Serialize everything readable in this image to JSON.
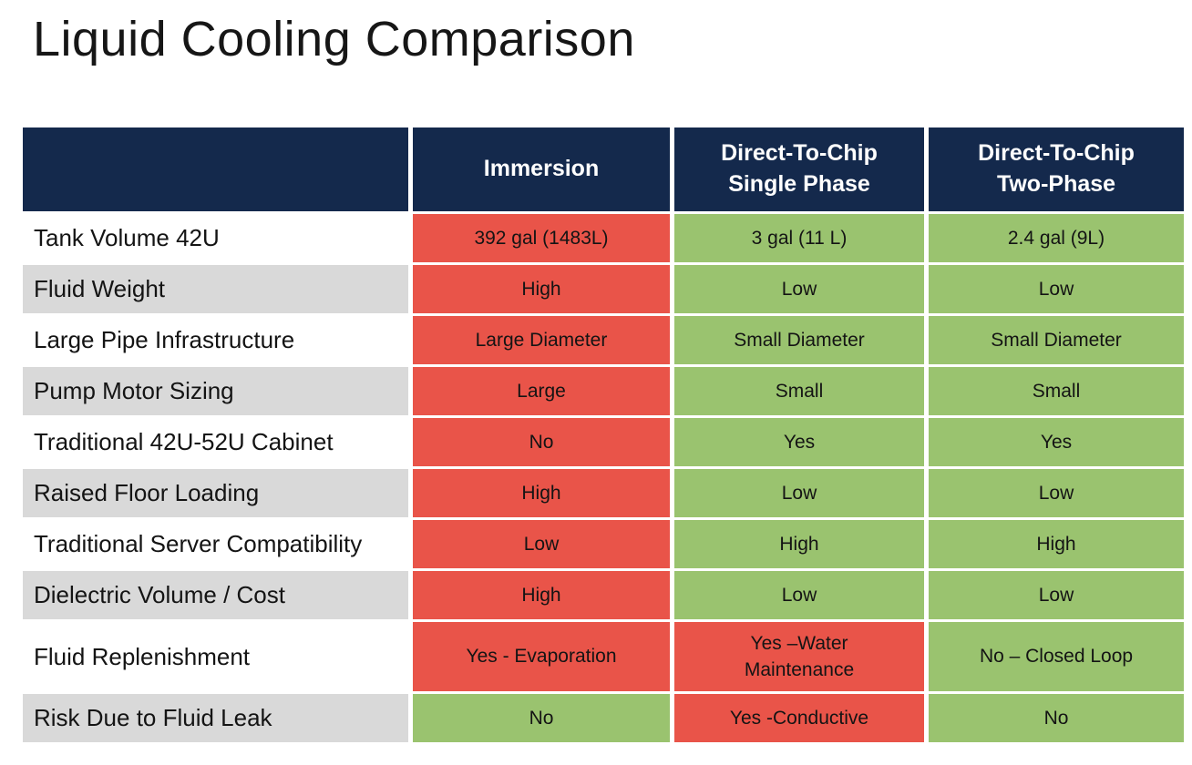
{
  "title": "Liquid Cooling Comparison",
  "colors": {
    "header_bg": "#14294C",
    "negative": "#E95449",
    "positive": "#9AC36F",
    "label_alt": "#D9D9D9",
    "label_default": "#FFFFFF",
    "header_text": "#FFFFFF",
    "body_text": "#141414"
  },
  "table": {
    "columns": [
      {
        "line1": "Immersion",
        "line2": ""
      },
      {
        "line1": "Direct-To-Chip",
        "line2": "Single Phase"
      },
      {
        "line1": "Direct-To-Chip",
        "line2": "Two-Phase"
      }
    ],
    "rows": [
      {
        "label": "Tank Volume 42U",
        "cells": [
          {
            "text": "392 gal (1483L)",
            "status": "negative"
          },
          {
            "text": "3 gal (11 L)",
            "status": "positive"
          },
          {
            "text": "2.4 gal (9L)",
            "status": "positive"
          }
        ]
      },
      {
        "label": "Fluid Weight",
        "cells": [
          {
            "text": "High",
            "status": "negative"
          },
          {
            "text": "Low",
            "status": "positive"
          },
          {
            "text": "Low",
            "status": "positive"
          }
        ]
      },
      {
        "label": "Large Pipe Infrastructure",
        "cells": [
          {
            "text": "Large Diameter",
            "status": "negative"
          },
          {
            "text": "Small Diameter",
            "status": "positive"
          },
          {
            "text": "Small Diameter",
            "status": "positive"
          }
        ]
      },
      {
        "label": "Pump Motor Sizing",
        "cells": [
          {
            "text": "Large",
            "status": "negative"
          },
          {
            "text": "Small",
            "status": "positive"
          },
          {
            "text": "Small",
            "status": "positive"
          }
        ]
      },
      {
        "label": "Traditional 42U-52U Cabinet",
        "cells": [
          {
            "text": "No",
            "status": "negative"
          },
          {
            "text": "Yes",
            "status": "positive"
          },
          {
            "text": "Yes",
            "status": "positive"
          }
        ]
      },
      {
        "label": "Raised Floor Loading",
        "cells": [
          {
            "text": "High",
            "status": "negative"
          },
          {
            "text": "Low",
            "status": "positive"
          },
          {
            "text": "Low",
            "status": "positive"
          }
        ]
      },
      {
        "label": "Traditional Server Compatibility",
        "cells": [
          {
            "text": "Low",
            "status": "negative"
          },
          {
            "text": "High",
            "status": "positive"
          },
          {
            "text": "High",
            "status": "positive"
          }
        ]
      },
      {
        "label": "Dielectric Volume / Cost",
        "cells": [
          {
            "text": "High",
            "status": "negative"
          },
          {
            "text": "Low",
            "status": "positive"
          },
          {
            "text": "Low",
            "status": "positive"
          }
        ]
      },
      {
        "label": "Fluid Replenishment",
        "cells": [
          {
            "text": "Yes - Evaporation",
            "status": "negative"
          },
          {
            "text": "Yes –Water Maintenance",
            "status": "negative"
          },
          {
            "text": "No – Closed Loop",
            "status": "positive"
          }
        ]
      },
      {
        "label": "Risk Due to Fluid Leak",
        "cells": [
          {
            "text": "No",
            "status": "positive"
          },
          {
            "text": "Yes -Conductive",
            "status": "negative"
          },
          {
            "text": "No",
            "status": "positive"
          }
        ]
      }
    ]
  }
}
